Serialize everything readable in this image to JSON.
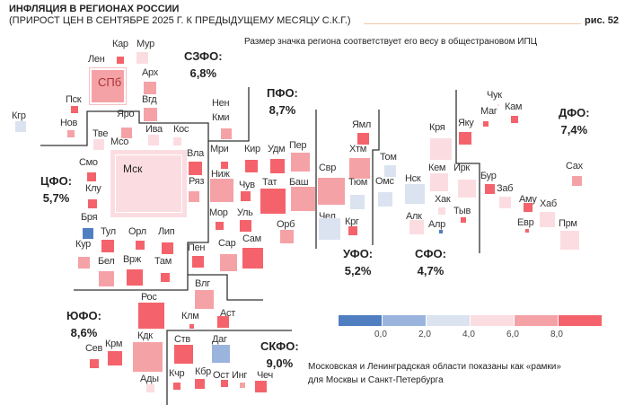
{
  "header": {
    "title": "ИНФЛЯЦИЯ В РЕГИОНАХ РОССИИ",
    "subtitle": "(ПРИРОСТ ЦЕН В СЕНТЯБРЕ 2025 Г. К ПРЕДЫДУЩЕМУ МЕСЯЦУ С.К.Г.)",
    "figure_number": "рис. 52",
    "size_note": "Размер значка региона соответствует его весу в общестрановом ИПЦ"
  },
  "colors": {
    "dark_red": "#f4636b",
    "medium_red": "#f5a2a7",
    "light_pink": "#fbdde1",
    "light_blue": "#dbe3f1",
    "medium_blue": "#9ab4dd",
    "blue": "#4f7fc1"
  },
  "districts": [
    {
      "name": "СЗФО:",
      "value": "6,8%"
    },
    {
      "name": "ЦФО:",
      "value": "5,7%"
    },
    {
      "name": "ПФО:",
      "value": "8,7%"
    },
    {
      "name": "УФО:",
      "value": "5,2%"
    },
    {
      "name": "СФО:",
      "value": "4,7%"
    },
    {
      "name": "ДФО:",
      "value": "7,4%"
    },
    {
      "name": "ЮФО:",
      "value": "8,6%"
    },
    {
      "name": "СКФО:",
      "value": "9,0%"
    }
  ],
  "regions": [
    {
      "label": "Кар",
      "color": "#f4636b"
    },
    {
      "label": "Мур",
      "color": "#fbdde1"
    },
    {
      "label": "Лен",
      "color": "#f5a2a7"
    },
    {
      "label": "Арх",
      "color": "#f5a2a7"
    },
    {
      "label": "Вгд",
      "color": "#f5a2a7"
    },
    {
      "label": "Пск",
      "color": "#f4636b"
    },
    {
      "label": "Кгр",
      "color": "#dbe3f1"
    },
    {
      "label": "Нов",
      "color": "#f5a2a7"
    },
    {
      "label": "Яро",
      "color": "#f5a2a7"
    },
    {
      "label": "Тве",
      "color": "#fbdde1"
    },
    {
      "label": "Ива",
      "color": "#fbdde1"
    },
    {
      "label": "Кос",
      "color": "#fbdde1"
    },
    {
      "label": "Вла",
      "color": "#f4636b"
    },
    {
      "label": "Ряз",
      "color": "#f5a2a7"
    },
    {
      "label": "Смо",
      "color": "#f4636b"
    },
    {
      "label": "Клу",
      "color": "#f4636b"
    },
    {
      "label": "Нен",
      "color": null
    },
    {
      "label": "Кми",
      "color": "#f5a2a7"
    },
    {
      "label": "Мри",
      "color": "#f4636b"
    },
    {
      "label": "Кир",
      "color": "#f4636b"
    },
    {
      "label": "Удм",
      "color": "#f4636b"
    },
    {
      "label": "Пер",
      "color": "#f5a2a7"
    },
    {
      "label": "Ниж",
      "color": "#f5a2a7"
    },
    {
      "label": "Чув",
      "color": "#f4636b"
    },
    {
      "label": "Тат",
      "color": "#f4636b"
    },
    {
      "label": "Баш",
      "color": "#f5a2a7"
    },
    {
      "label": "Мор",
      "color": "#f4636b"
    },
    {
      "label": "Уль",
      "color": "#f4636b"
    },
    {
      "label": "Орб",
      "color": "#f5a2a7"
    },
    {
      "label": "Сам",
      "color": "#f4636b"
    },
    {
      "label": "Сар",
      "color": "#f5a2a7"
    },
    {
      "label": "Пен",
      "color": "#f4636b"
    },
    {
      "label": "Свр",
      "color": "#f5a2a7"
    },
    {
      "label": "Чел",
      "color": "#dbe3f1"
    },
    {
      "label": "Ямл",
      "color": "#f4636b"
    },
    {
      "label": "Хтм",
      "color": "#f5a2a7"
    },
    {
      "label": "Тюм",
      "color": "#dbe3f1"
    },
    {
      "label": "Крг",
      "color": "#f4636b"
    },
    {
      "label": "Том",
      "color": "#dbe3f1"
    },
    {
      "label": "Омс",
      "color": "#dbe3f1"
    },
    {
      "label": "Нск",
      "color": "#dbe3f1"
    },
    {
      "label": "Кря",
      "color": "#fbdde1"
    },
    {
      "label": "Кем",
      "color": "#fbdde1"
    },
    {
      "label": "Ирк",
      "color": "#fbdde1"
    },
    {
      "label": "Хак",
      "color": "#fbdde1"
    },
    {
      "label": "Алк",
      "color": "#fbdde1"
    },
    {
      "label": "Алр",
      "color": "#4f7fc1"
    },
    {
      "label": "Тыв",
      "color": "#f4636b"
    },
    {
      "label": "Яку",
      "color": "#f4636b"
    },
    {
      "label": "Маг",
      "color": "#f4636b"
    },
    {
      "label": "Чук",
      "color": "#fbdde1"
    },
    {
      "label": "Кам",
      "color": "#f4636b"
    },
    {
      "label": "Бур",
      "color": "#f4636b"
    },
    {
      "label": "Заб",
      "color": "#fbdde1"
    },
    {
      "label": "Аму",
      "color": "#f4636b"
    },
    {
      "label": "Хаб",
      "color": "#fbdde1"
    },
    {
      "label": "Евр",
      "color": "#f4636b"
    },
    {
      "label": "Прм",
      "color": "#fbdde1"
    },
    {
      "label": "Сах",
      "color": "#f5a2a7"
    },
    {
      "label": "Бря",
      "color": "#4f7fc1"
    },
    {
      "label": "Тул",
      "color": "#f4636b"
    },
    {
      "label": "Орл",
      "color": "#f4636b"
    },
    {
      "label": "Лип",
      "color": "#f4636b"
    },
    {
      "label": "Кур",
      "color": "#f5a2a7"
    },
    {
      "label": "Бел",
      "color": "#f5a2a7"
    },
    {
      "label": "Врж",
      "color": "#f4636b"
    },
    {
      "label": "Там",
      "color": "#f4636b"
    },
    {
      "label": "Рос",
      "color": "#f4636b"
    },
    {
      "label": "Влг",
      "color": "#f5a2a7"
    },
    {
      "label": "Клм",
      "color": "#f4636b"
    },
    {
      "label": "Аст",
      "color": "#f4636b"
    },
    {
      "label": "Кдк",
      "color": "#f5a2a7"
    },
    {
      "label": "Сев",
      "color": "#f4636b"
    },
    {
      "label": "Крм",
      "color": "#f4636b"
    },
    {
      "label": "Ады",
      "color": "#fbdde1"
    },
    {
      "label": "Ств",
      "color": "#f4636b"
    },
    {
      "label": "Даг",
      "color": "#9ab4dd"
    },
    {
      "label": "Кчр",
      "color": "#f4636b"
    },
    {
      "label": "Кбр",
      "color": "#f4636b"
    },
    {
      "label": "Ост",
      "color": "#f4636b"
    },
    {
      "label": "Инг",
      "color": "#f5a2a7"
    },
    {
      "label": "Чеч",
      "color": "#f4636b"
    }
  ],
  "frames": {
    "spb": {
      "label": "СПб",
      "color": "#f5a2a7"
    },
    "msk": {
      "label": "Мск",
      "color": "#fbdde1"
    },
    "mso_label": "Мсо"
  },
  "legend": {
    "colors": [
      "#4f7fc1",
      "#9ab4dd",
      "#dbe3f1",
      "#fbdde1",
      "#f5a2a7",
      "#f4636b"
    ],
    "ticks": [
      "0,0",
      "2,0",
      "4,0",
      "6,0",
      "8,0"
    ]
  },
  "footnote": {
    "line1": "Московская и Ленинградская области показаны как «рамки»",
    "line2": "для Москвы и Санкт-Петербурга"
  }
}
